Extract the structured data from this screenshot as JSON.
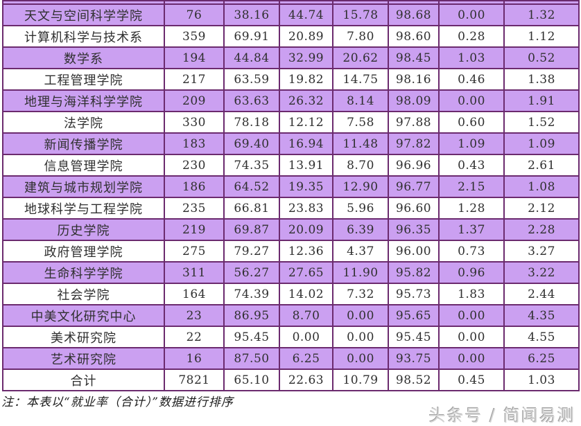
{
  "table": {
    "description": "college employment statistics table, 8 columns, header not visible (cut off at top)",
    "rows": [
      {
        "shaded": true,
        "cells": [
          "天文与空间科学学院",
          "76",
          "38.16",
          "44.74",
          "15.78",
          "98.68",
          "0.00",
          "1.32"
        ]
      },
      {
        "shaded": false,
        "cells": [
          "计算机科学与技术系",
          "359",
          "69.91",
          "20.89",
          "7.80",
          "98.60",
          "0.28",
          "1.12"
        ]
      },
      {
        "shaded": true,
        "cells": [
          "数学系",
          "194",
          "44.84",
          "32.99",
          "20.62",
          "98.45",
          "1.03",
          "0.52"
        ]
      },
      {
        "shaded": false,
        "cells": [
          "工程管理学院",
          "217",
          "63.59",
          "19.82",
          "14.75",
          "98.16",
          "0.46",
          "1.38"
        ]
      },
      {
        "shaded": true,
        "cells": [
          "地理与海洋科学学院",
          "209",
          "63.63",
          "26.32",
          "8.14",
          "98.09",
          "0.00",
          "1.91"
        ]
      },
      {
        "shaded": false,
        "cells": [
          "法学院",
          "330",
          "78.18",
          "12.12",
          "7.58",
          "97.88",
          "0.60",
          "1.52"
        ]
      },
      {
        "shaded": true,
        "cells": [
          "新闻传播学院",
          "183",
          "69.40",
          "16.94",
          "11.48",
          "97.82",
          "1.09",
          "1.09"
        ]
      },
      {
        "shaded": false,
        "cells": [
          "信息管理学院",
          "230",
          "74.35",
          "13.91",
          "8.70",
          "96.96",
          "0.43",
          "2.61"
        ]
      },
      {
        "shaded": true,
        "cells": [
          "建筑与城市规划学院",
          "186",
          "64.52",
          "19.35",
          "12.90",
          "96.77",
          "2.15",
          "1.08"
        ]
      },
      {
        "shaded": false,
        "cells": [
          "地球科学与工程学院",
          "235",
          "66.81",
          "23.83",
          "5.96",
          "96.60",
          "1.28",
          "2.12"
        ]
      },
      {
        "shaded": true,
        "cells": [
          "历史学院",
          "219",
          "69.87",
          "20.09",
          "6.39",
          "96.35",
          "1.37",
          "2.28"
        ]
      },
      {
        "shaded": false,
        "cells": [
          "政府管理学院",
          "275",
          "79.27",
          "12.36",
          "4.37",
          "96.00",
          "0.73",
          "3.27"
        ]
      },
      {
        "shaded": true,
        "cells": [
          "生命科学学院",
          "311",
          "56.27",
          "27.65",
          "11.90",
          "95.82",
          "0.96",
          "3.22"
        ]
      },
      {
        "shaded": false,
        "cells": [
          "社会学院",
          "164",
          "74.39",
          "14.02",
          "7.32",
          "95.73",
          "1.83",
          "2.44"
        ]
      },
      {
        "shaded": true,
        "cells": [
          "中美文化研究中心",
          "23",
          "86.95",
          "8.70",
          "0.00",
          "95.65",
          "0.00",
          "4.35"
        ]
      },
      {
        "shaded": false,
        "cells": [
          "美术研究院",
          "22",
          "95.45",
          "0.00",
          "0.00",
          "95.45",
          "0.00",
          "4.55"
        ]
      },
      {
        "shaded": true,
        "cells": [
          "艺术研究院",
          "16",
          "87.50",
          "6.25",
          "0.00",
          "93.75",
          "0.00",
          "6.25"
        ]
      },
      {
        "shaded": false,
        "cells": [
          "合计",
          "7821",
          "65.10",
          "22.63",
          "10.79",
          "98.52",
          "0.45",
          "1.03"
        ]
      }
    ]
  },
  "footnote": "注：本表以“就业率（合计）”数据进行排序",
  "watermark": "头条号 / 简闻易测",
  "colors": {
    "row_shade": "#cba0f1",
    "table_border": "#6b2a6e",
    "text": "#2f2f2f",
    "watermark_gray": "#d6d6d6"
  }
}
